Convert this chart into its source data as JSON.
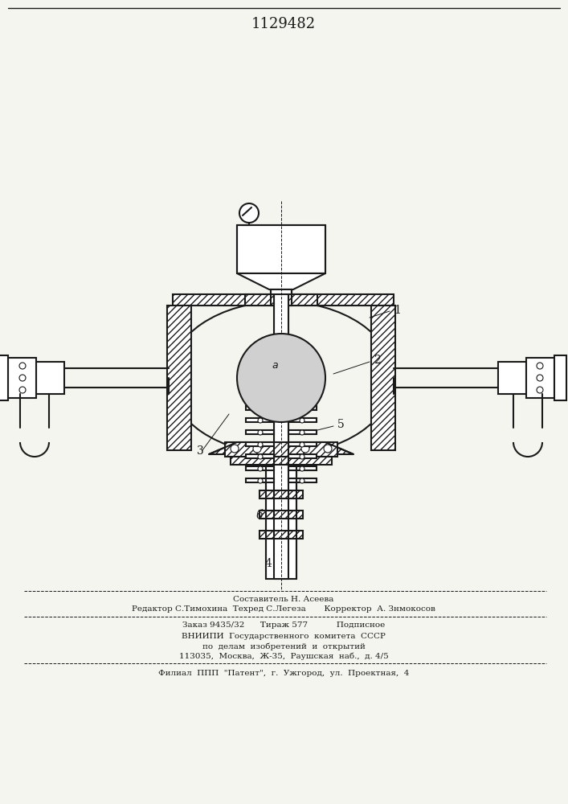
{
  "title": "1129482",
  "background_color": "#f5f5f0",
  "line_color": "#1a1a1a",
  "hatch_color": "#1a1a1a",
  "text_color": "#1a1a1a",
  "footer_lines": [
    "Составитель Н. Асеева",
    "Редактор С.Тимохина  Техред С.Легеза       Корректор  А. Знмокосов",
    "Заказ 9435/32      Тираж 577           Подписное",
    "ВНИИПИ  Государственного  комитета  СССР",
    "по  делам  изобретений  и  открытий",
    "113035,  Москва,  Ж-35,  Раушская  наб.,  д. 4/5",
    "Филиал  ППП  \"Патент\",  г.  Ужгород,  ул.  Проектная,  4"
  ]
}
